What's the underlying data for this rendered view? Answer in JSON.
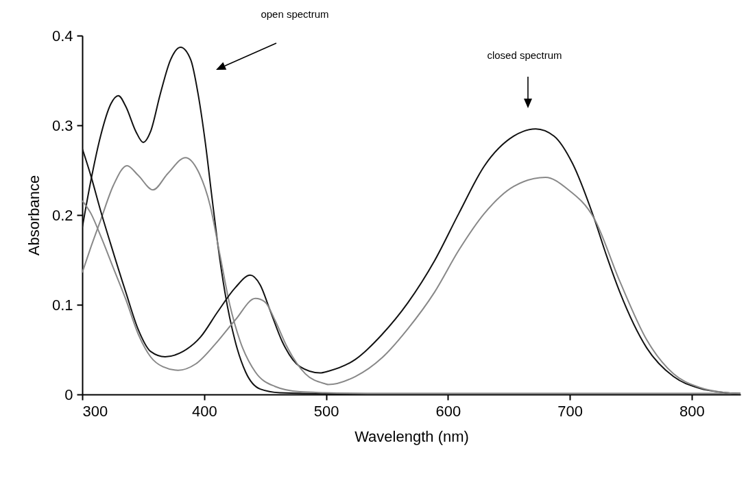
{
  "chart_data": {
    "type": "line",
    "xlabel": "Wavelength (nm)",
    "ylabel": "Absorbance",
    "annotations": [
      "open spectrum",
      "closed spectrum"
    ],
    "xlim": [
      300,
      840
    ],
    "xticks": [
      300,
      400,
      500,
      600,
      700,
      800
    ],
    "ylim": [
      0,
      0.4
    ],
    "yticks": [
      0,
      0.1,
      0.2,
      0.3,
      0.4
    ],
    "series": [
      {
        "color": "#111111",
        "x": [
          300,
          307,
          315,
          323.5,
          329.6,
          335.7,
          344,
          350,
          356,
          364,
          372.4,
          380.6,
          389,
          395,
          401,
          406,
          411,
          417,
          425.5,
          434,
          446,
          462,
          500,
          600,
          700,
          840
        ],
        "values": [
          0.186,
          0.238,
          0.288,
          0.324,
          0.333,
          0.321,
          0.293,
          0.281,
          0.293,
          0.335,
          0.373,
          0.387,
          0.373,
          0.335,
          0.28,
          0.224,
          0.169,
          0.114,
          0.059,
          0.025,
          0.006,
          0.002,
          0.001,
          0.001,
          0.001,
          0.001
        ]
      },
      {
        "color": "#888888",
        "x": [
          300,
          307,
          315,
          325.5,
          336.7,
          346,
          358,
          370,
          384.7,
          395,
          405,
          413,
          421,
          429.6,
          442,
          458,
          478.6,
          499,
          550,
          700,
          840
        ],
        "values": [
          0.136,
          0.164,
          0.194,
          0.233,
          0.255,
          0.244,
          0.228,
          0.246,
          0.264,
          0.249,
          0.21,
          0.155,
          0.1,
          0.059,
          0.025,
          0.009,
          0.003,
          0.002,
          0.001,
          0.001,
          0.001
        ]
      },
      {
        "color": "#111111",
        "x": [
          300,
          307,
          315,
          323,
          335.7,
          346,
          356,
          368,
          382.7,
          397,
          411,
          425.5,
          437.8,
          446,
          454,
          464,
          478.6,
          495,
          502,
          524,
          546,
          567,
          589,
          609,
          630,
          654,
          672,
          687,
          702,
          720,
          730,
          741,
          763,
          785,
          806,
          828,
          840
        ],
        "values": [
          0.274,
          0.244,
          0.205,
          0.169,
          0.114,
          0.072,
          0.048,
          0.042,
          0.048,
          0.064,
          0.092,
          0.119,
          0.133,
          0.122,
          0.094,
          0.059,
          0.031,
          0.024,
          0.026,
          0.039,
          0.067,
          0.102,
          0.149,
          0.202,
          0.255,
          0.288,
          0.296,
          0.288,
          0.258,
          0.196,
          0.155,
          0.114,
          0.052,
          0.02,
          0.007,
          0.002,
          0.001
        ]
      },
      {
        "color": "#888888",
        "x": [
          300,
          307,
          315,
          325.5,
          335.7,
          346,
          356,
          366,
          378.6,
          393,
          409,
          425.5,
          442,
          450,
          458,
          468,
          483,
          499,
          502,
          524,
          546,
          567,
          589,
          609,
          630,
          654,
          680,
          698,
          720,
          741,
          763,
          785,
          806,
          828,
          840
        ],
        "values": [
          0.216,
          0.202,
          0.177,
          0.141,
          0.106,
          0.067,
          0.042,
          0.031,
          0.027,
          0.034,
          0.056,
          0.083,
          0.107,
          0.103,
          0.083,
          0.053,
          0.023,
          0.012,
          0.011,
          0.02,
          0.041,
          0.073,
          0.114,
          0.161,
          0.202,
          0.232,
          0.242,
          0.229,
          0.196,
          0.126,
          0.061,
          0.023,
          0.008,
          0.002,
          0.001
        ]
      }
    ]
  }
}
